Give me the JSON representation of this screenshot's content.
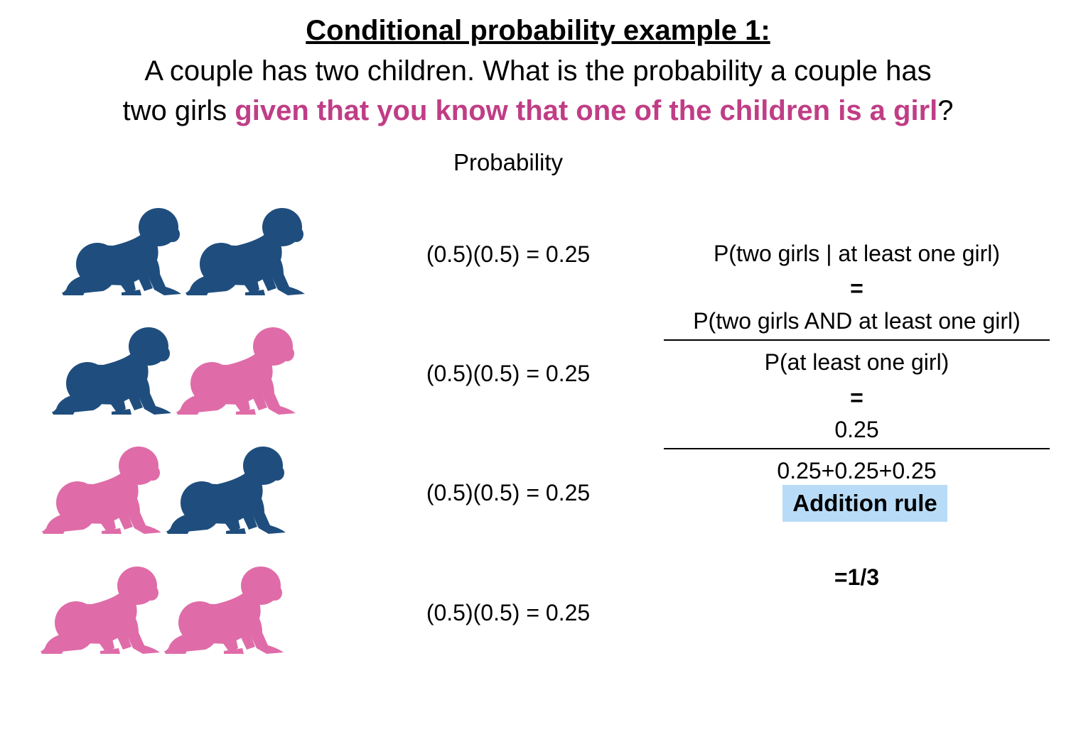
{
  "header": {
    "title": "Conditional probability example 1:",
    "question_line1": "A couple has two children. What is the probability a couple has",
    "question_line2_prefix": "two girls ",
    "question_line2_highlight": "given that you know that one of the children is a girl",
    "question_line2_suffix": "?"
  },
  "probability_column": {
    "header": "Probability",
    "rows": [
      {
        "children": [
          "boy",
          "boy"
        ],
        "probability_text": "(0.5)(0.5) = 0.25"
      },
      {
        "children": [
          "boy",
          "girl"
        ],
        "probability_text": "(0.5)(0.5) = 0.25"
      },
      {
        "children": [
          "girl",
          "boy"
        ],
        "probability_text": "(0.5)(0.5) = 0.25"
      },
      {
        "children": [
          "girl",
          "girl"
        ],
        "probability_text": "(0.5)(0.5) = 0.25"
      }
    ]
  },
  "calculation": {
    "conditional": "P(two girls | at least one girl)",
    "equals_1": "=",
    "numerator": "P(two girls AND at least one girl)",
    "denominator": "P(at least one girl)",
    "equals_2": "=",
    "numerator_value": "0.25",
    "denominator_value": "0.25+0.25+0.25",
    "badge": "Addition rule",
    "result": "=1/3"
  },
  "colors": {
    "boy": "#1f4e7e",
    "girl": "#df6ca8",
    "highlight_text": "#c03d86",
    "badge_background": "#b8dcf7"
  },
  "icons": {
    "boy": "crawling-baby-boy-icon",
    "girl": "crawling-baby-girl-icon"
  }
}
